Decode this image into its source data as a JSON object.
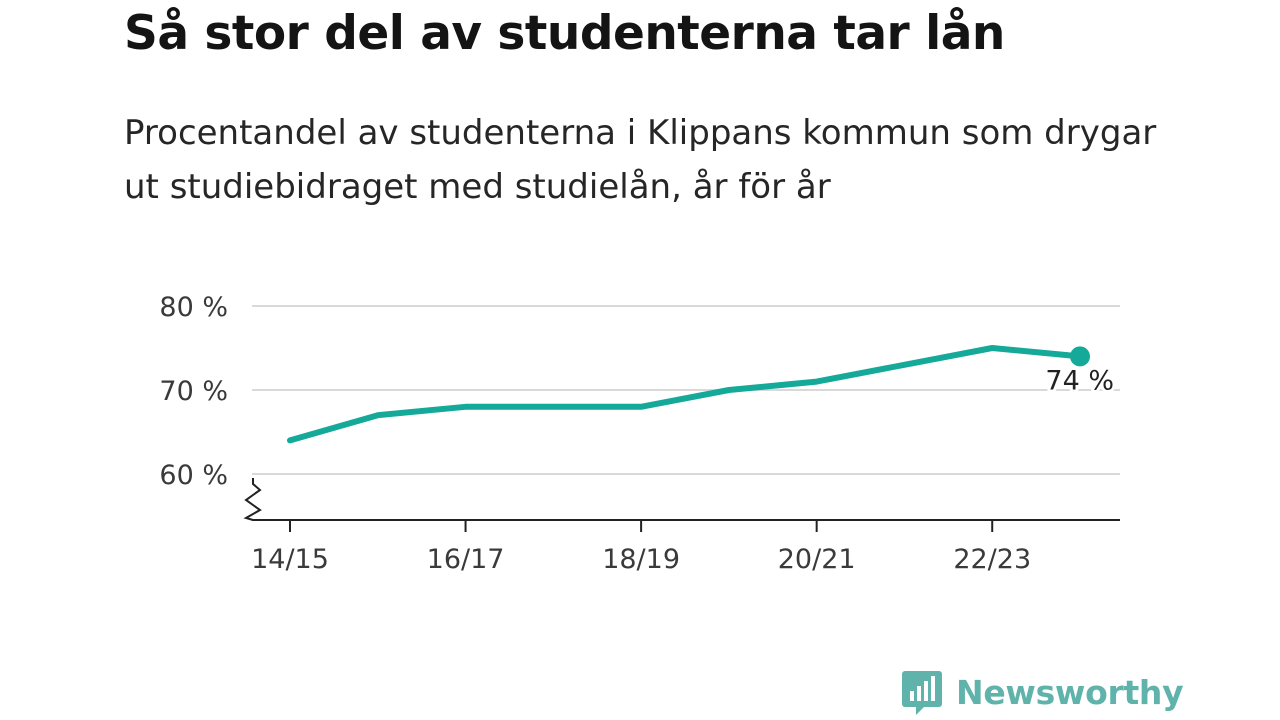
{
  "header": {
    "title": "Så stor del av studenterna tar lån",
    "subtitle": "Procentandel av studenterna i Klippans kommun som drygar ut studiebidraget med studielån, år för år"
  },
  "colors": {
    "series": "#14a999",
    "grid": "#d9d9d9",
    "axis": "#222222",
    "brand": "#5fb3ab"
  },
  "chart_data": {
    "type": "line",
    "x": [
      "14/15",
      "15/16",
      "16/17",
      "17/18",
      "18/19",
      "19/20",
      "20/21",
      "21/22",
      "22/23",
      "23/24"
    ],
    "y_tick_values": [
      60,
      70,
      80
    ],
    "y_tick_labels": [
      "60 %",
      "70 %",
      "80 %"
    ],
    "x_tick_labels": [
      "14/15",
      "16/17",
      "18/19",
      "20/21",
      "22/23"
    ],
    "ylim": [
      54.5,
      80
    ],
    "grid": true,
    "axis_break": true,
    "series": [
      {
        "values": [
          64,
          67,
          68,
          68,
          68,
          70,
          71,
          73,
          75,
          74
        ]
      }
    ],
    "end_label": "74 %"
  },
  "brand": {
    "name": "Newsworthy",
    "icon": "newsworthy-logo-icon"
  }
}
